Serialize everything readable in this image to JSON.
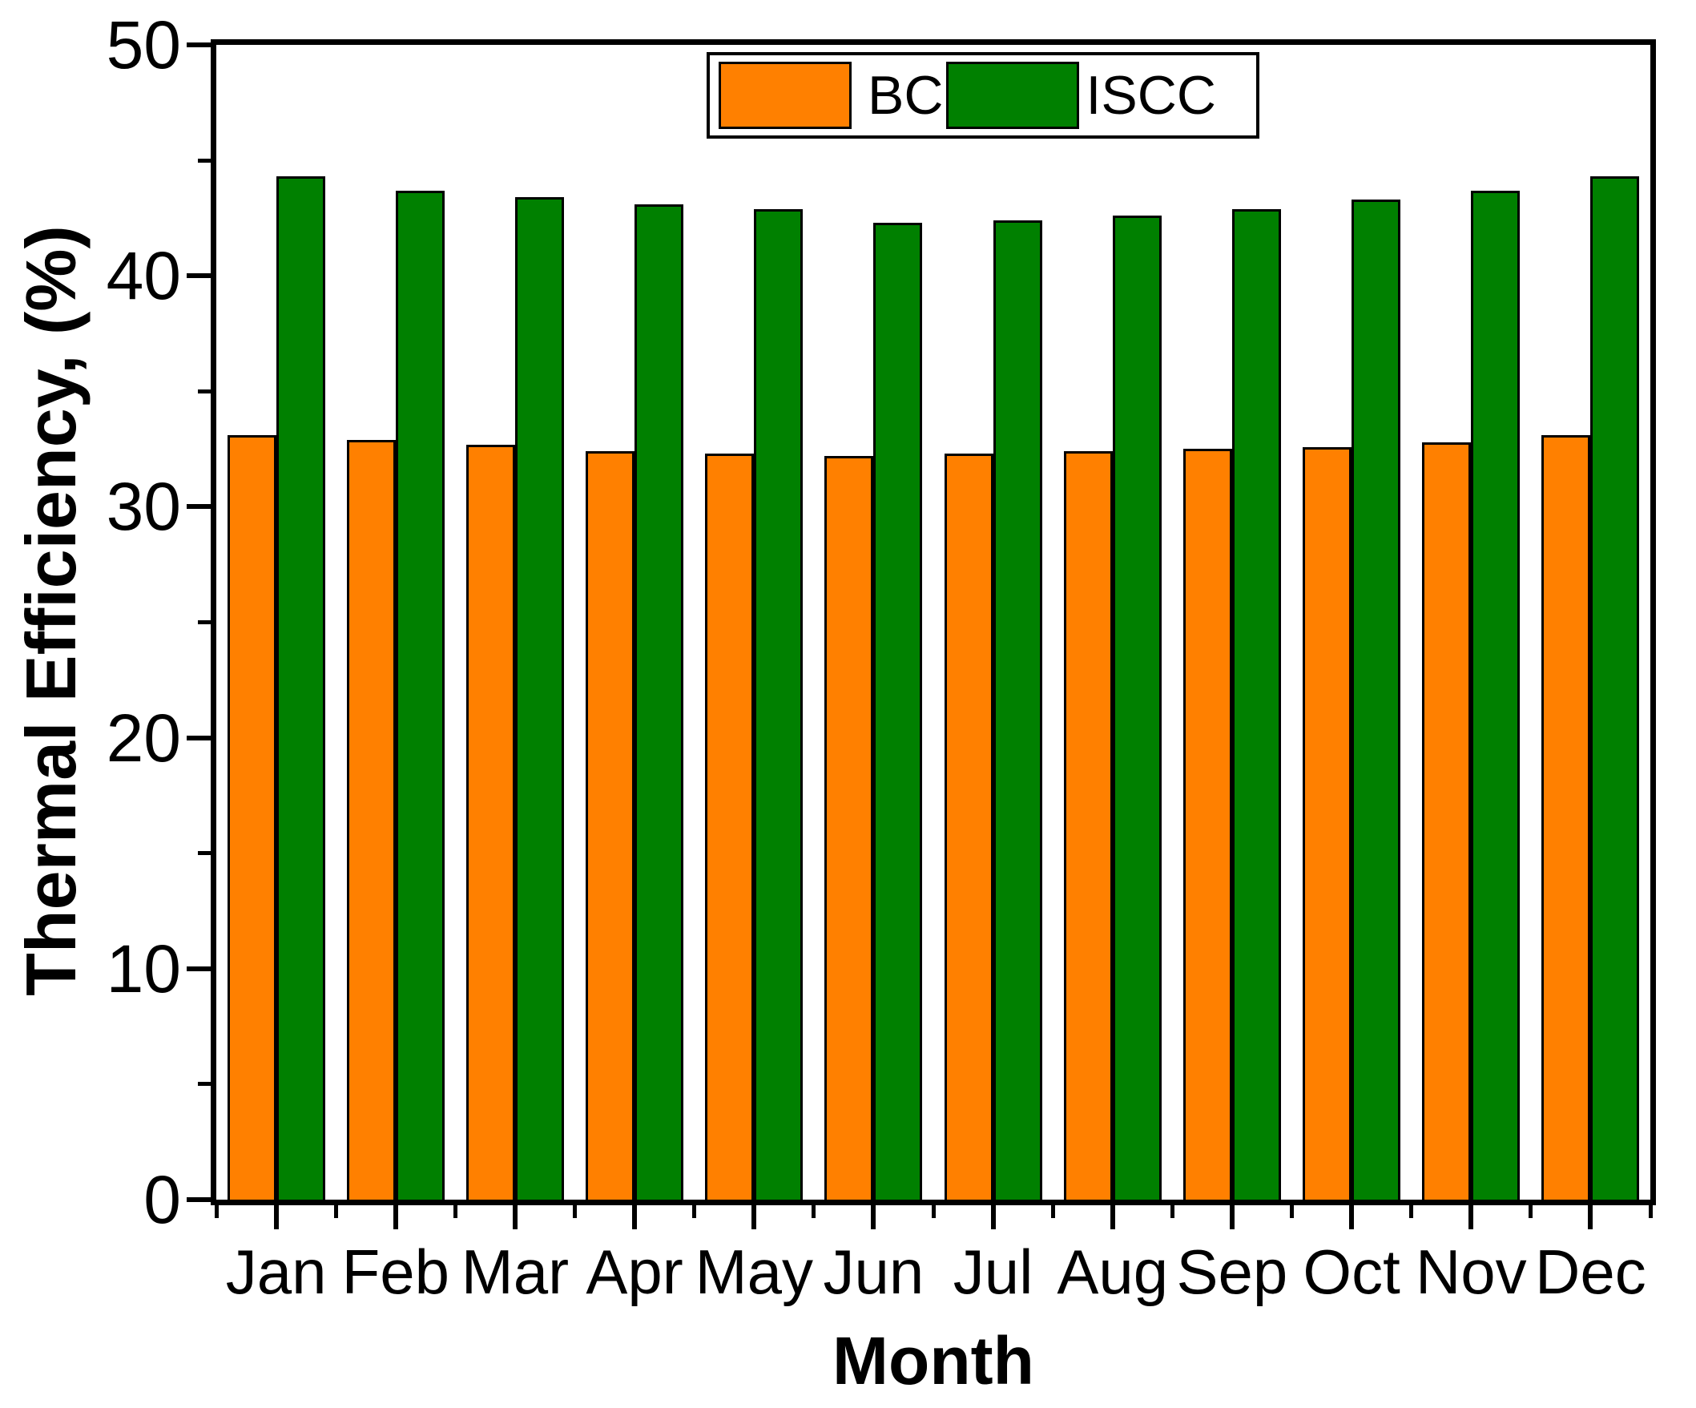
{
  "chart_data": {
    "type": "bar",
    "title": "",
    "xlabel": "Month",
    "ylabel": "Thermal Efficiency, (%)",
    "categories": [
      "Jan",
      "Feb",
      "Mar",
      "Apr",
      "May",
      "Jun",
      "Jul",
      "Aug",
      "Sep",
      "Oct",
      "Nov",
      "Dec"
    ],
    "series": [
      {
        "name": "BC",
        "color": "#FF8000",
        "values": [
          33.1,
          32.9,
          32.7,
          32.4,
          32.3,
          32.2,
          32.3,
          32.4,
          32.5,
          32.6,
          32.8,
          33.1
        ]
      },
      {
        "name": "ISCC",
        "color": "#008000",
        "values": [
          44.3,
          43.7,
          43.4,
          43.1,
          42.9,
          42.3,
          42.4,
          42.6,
          42.9,
          43.3,
          43.7,
          44.3
        ]
      }
    ],
    "ylim": [
      0,
      50
    ],
    "y_major_ticks": [
      0,
      10,
      20,
      30,
      40,
      50
    ],
    "y_minor_ticks": [
      5,
      15,
      25,
      35,
      45
    ],
    "grid": false,
    "legend_position": "top-center",
    "bar_outline_color": "#000000",
    "frame_color": "#000000"
  },
  "legend": {
    "items": [
      {
        "label": "BC",
        "color": "#FF8000"
      },
      {
        "label": "ISCC",
        "color": "#008000"
      }
    ]
  }
}
